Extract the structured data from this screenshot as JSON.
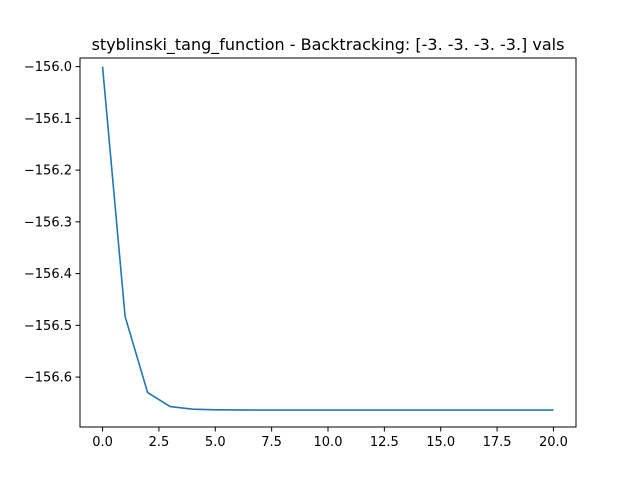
{
  "chart_data": {
    "type": "line",
    "title": "styblinski_tang_function - Backtracking: [-3. -3. -3. -3.] vals",
    "xlabel": "",
    "ylabel": "",
    "xlim": [
      -1.0,
      21.0
    ],
    "ylim": [
      -156.6965,
      -155.9833
    ],
    "grid": false,
    "x_ticks": [
      0.0,
      2.5,
      5.0,
      7.5,
      10.0,
      12.5,
      15.0,
      17.5,
      20.0
    ],
    "x_tick_labels": [
      "0.0",
      "2.5",
      "5.0",
      "7.5",
      "10.0",
      "12.5",
      "15.0",
      "17.5",
      "20.0"
    ],
    "y_ticks": [
      -156.0,
      -156.1,
      -156.2,
      -156.3,
      -156.4,
      -156.5,
      -156.6
    ],
    "y_tick_labels": [
      "−156.0",
      "−156.1",
      "−156.2",
      "−156.3",
      "−156.4",
      "−156.5",
      "−156.6"
    ],
    "series": [
      {
        "color": "#1f77b4",
        "x": [
          0,
          1,
          2,
          3,
          4,
          5,
          6,
          7,
          8,
          9,
          10,
          11,
          12,
          13,
          14,
          15,
          16,
          17,
          18,
          19,
          20
        ],
        "y": [
          -156.0,
          -156.483,
          -156.63,
          -156.657,
          -156.662,
          -156.6632,
          -156.6636,
          -156.6637,
          -156.6637,
          -156.6637,
          -156.6637,
          -156.6637,
          -156.6637,
          -156.6637,
          -156.6637,
          -156.6637,
          -156.6637,
          -156.6637,
          -156.6637,
          -156.6637,
          -156.6637
        ]
      }
    ]
  }
}
